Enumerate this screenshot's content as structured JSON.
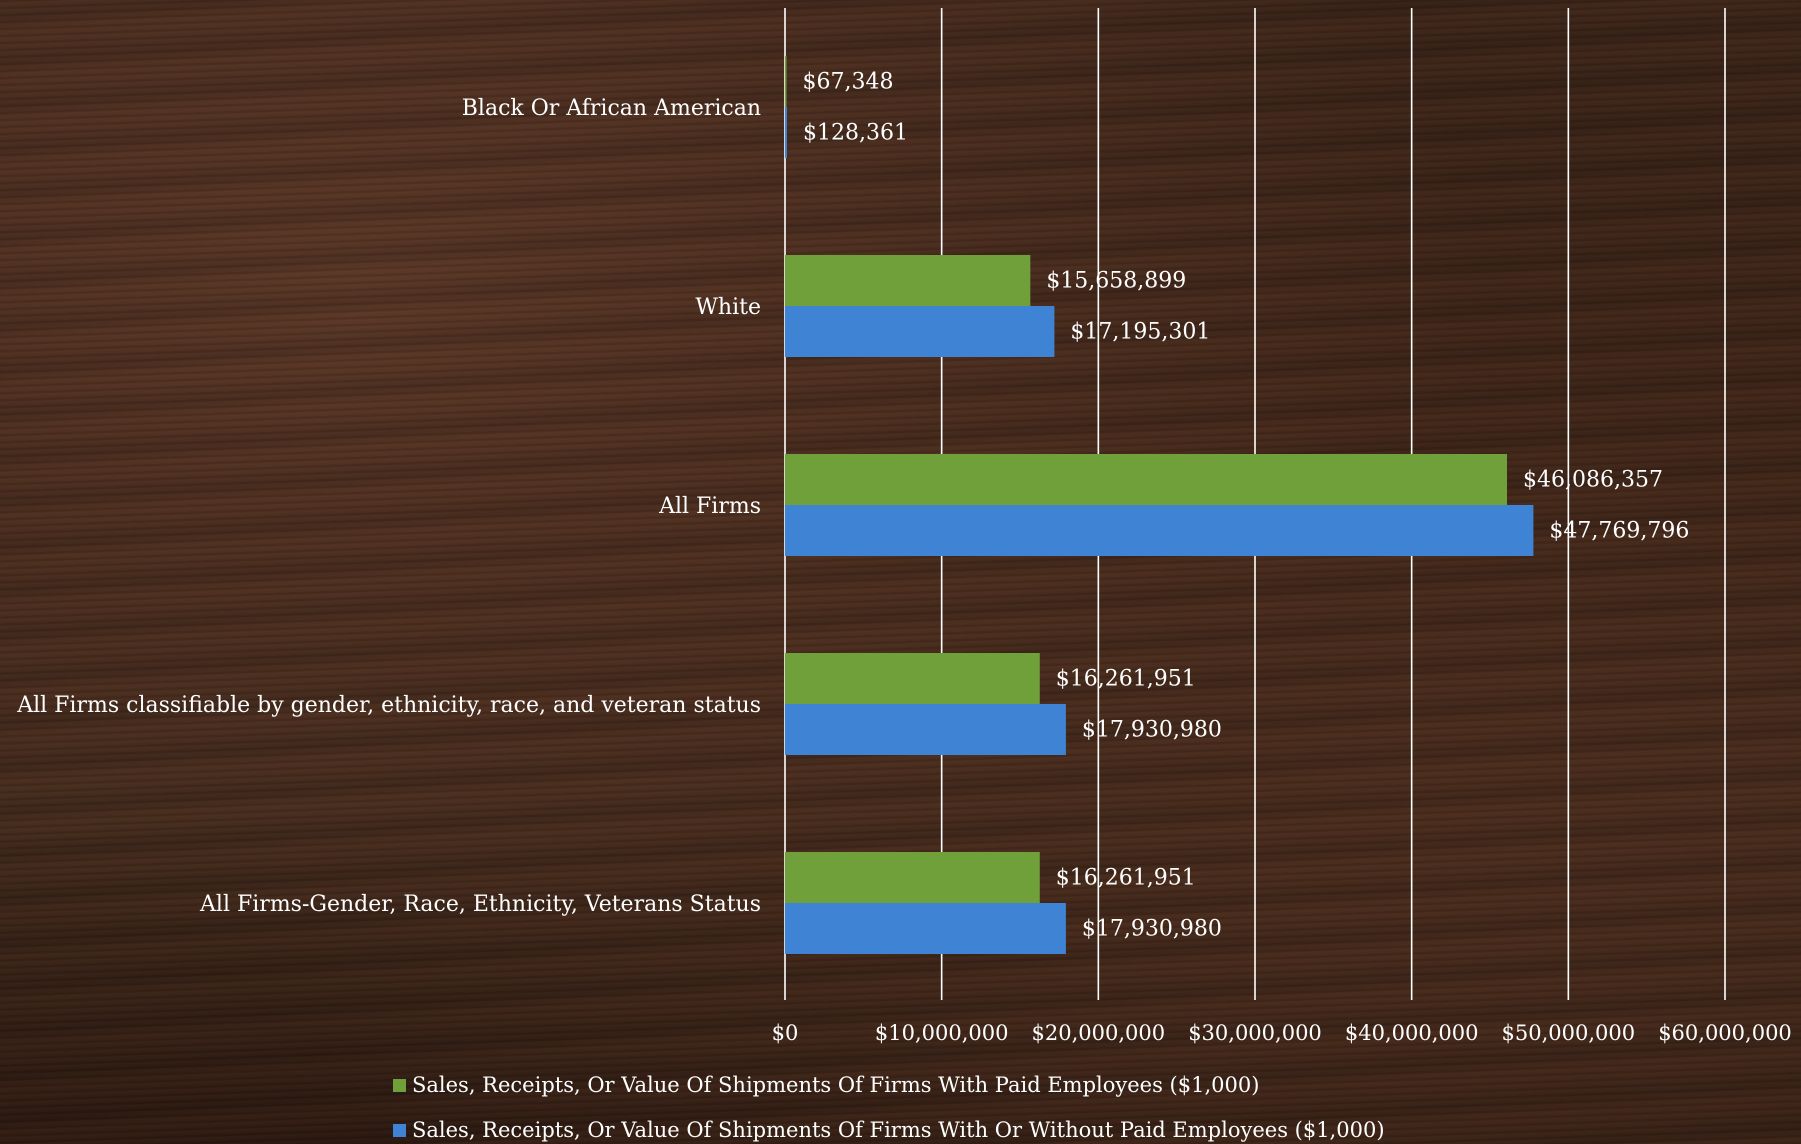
{
  "chart_data": {
    "type": "bar",
    "orientation": "horizontal",
    "categories": [
      "Black Or African American",
      "White",
      "All Firms",
      "All Firms classifiable by gender, ethnicity, race, and veteran status",
      "All Firms-Gender, Race, Ethnicity, Veterans Status"
    ],
    "series": [
      {
        "name": "Sales, Receipts, Or Value Of Shipments Of Firms With Paid Employees ($1,000)",
        "color": "#70a03a",
        "values": [
          67348,
          15658899,
          46086357,
          16261951,
          16261951
        ],
        "labels": [
          "$67,348",
          "$15,658,899",
          "$46,086,357",
          "$16,261,951",
          "$16,261,951"
        ]
      },
      {
        "name": "Sales, Receipts, Or Value Of Shipments Of Firms With Or Without Paid Employees ($1,000)",
        "color": "#3f83d4",
        "values": [
          128361,
          17195301,
          47769796,
          17930980,
          17930980
        ],
        "labels": [
          "$128,361",
          "$17,195,301",
          "$47,769,796",
          "$17,930,980",
          "$17,930,980"
        ]
      }
    ],
    "xlim": [
      0,
      60000000
    ],
    "xticks": [
      0,
      10000000,
      20000000,
      30000000,
      40000000,
      50000000,
      60000000
    ],
    "xtick_labels": [
      "$0",
      "$10,000,000",
      "$20,000,000",
      "$30,000,000",
      "$40,000,000",
      "$50,000,000",
      "$60,000,000"
    ],
    "grid": "vertical",
    "legend": "bottom",
    "title": "",
    "xlabel": "",
    "ylabel": ""
  }
}
